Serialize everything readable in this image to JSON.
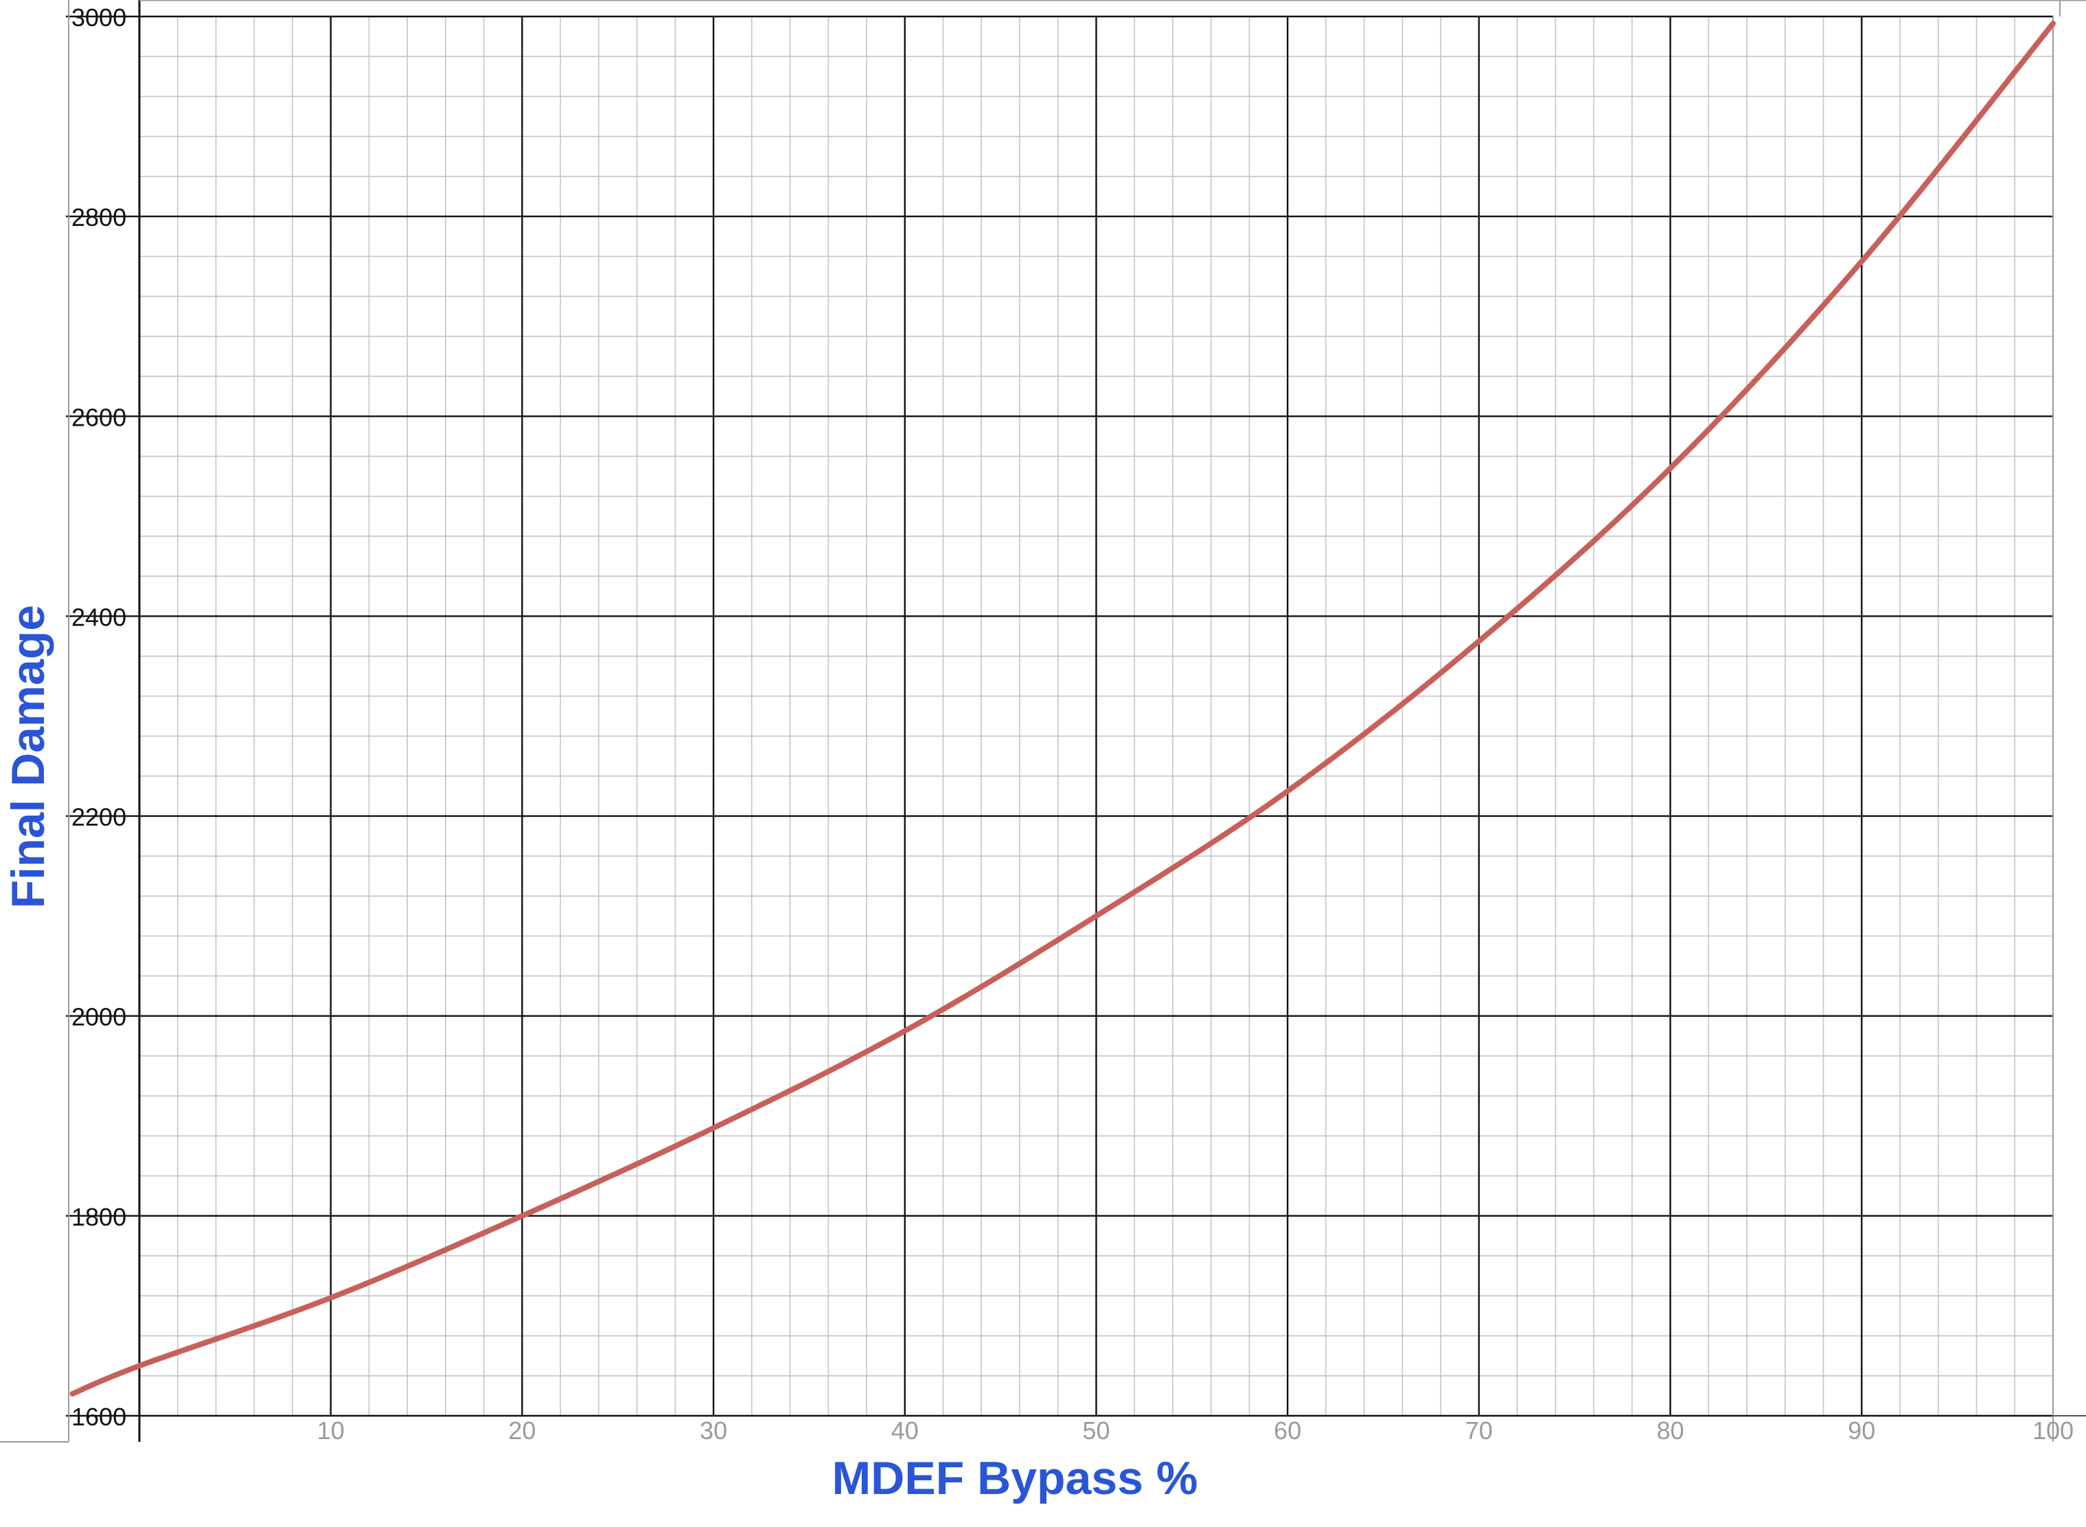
{
  "chart_data": {
    "type": "line",
    "title": "",
    "xlabel": "MDEF Bypass %",
    "ylabel": "Final Damage",
    "xlim": [
      0,
      100
    ],
    "ylim": [
      1600,
      3000
    ],
    "x_ticks": [
      10,
      20,
      30,
      40,
      50,
      60,
      70,
      80,
      90,
      100
    ],
    "x_tick_labels": [
      "10",
      "20",
      "30",
      "40",
      "50",
      "60",
      "70",
      "80",
      "90",
      "100"
    ],
    "y_ticks": [
      1600,
      1800,
      2000,
      2200,
      2400,
      2600,
      2800,
      3000
    ],
    "y_tick_labels": [
      "1600",
      "1800",
      "2000",
      "2200",
      "2400",
      "2600",
      "2800",
      "3000"
    ],
    "grid": true,
    "series": [
      {
        "x": [
          -3.5,
          0,
          10,
          20,
          30,
          40,
          50,
          60,
          70,
          80,
          90,
          100
        ],
        "y": [
          1622,
          1650,
          1718,
          1800,
          1888,
          1985,
          2100,
          2225,
          2375,
          2548,
          2755,
          2993
        ]
      }
    ],
    "colors": {
      "line": "#c8605a",
      "axis_title": "#2a55d6",
      "major_grid": "#111111",
      "minor_grid": "#c4c4c4"
    }
  }
}
